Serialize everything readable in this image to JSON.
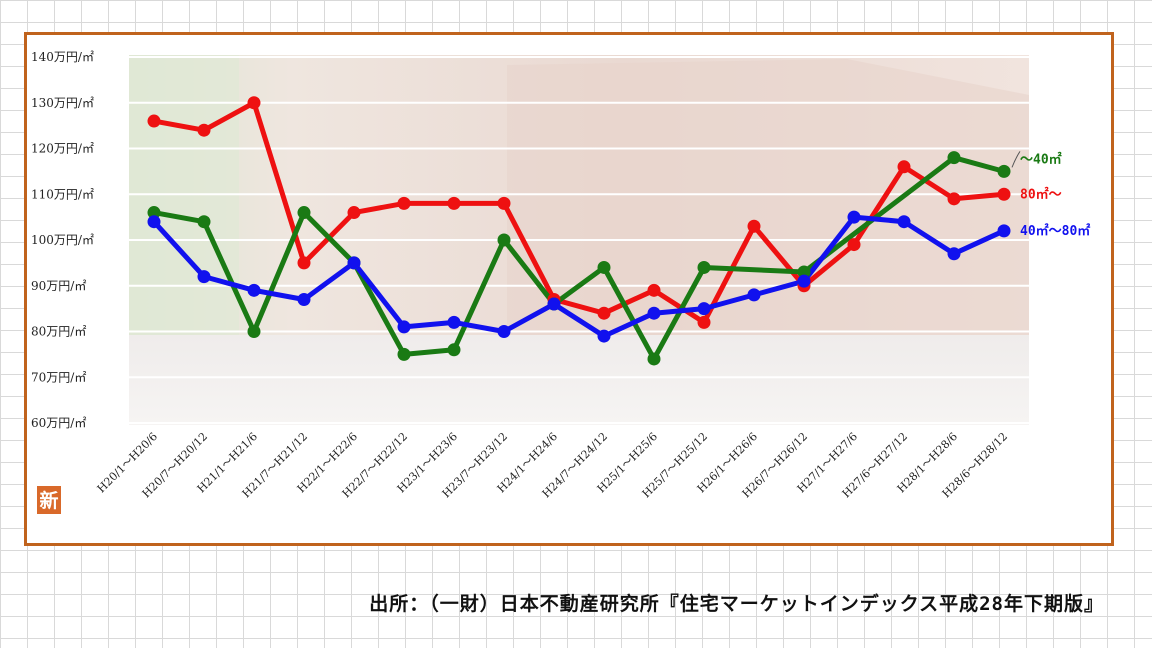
{
  "chart_data": {
    "type": "line",
    "y_unit_suffix": "万円/㎡",
    "ylim": [
      60,
      140
    ],
    "yticks": [
      60,
      70,
      80,
      90,
      100,
      110,
      120,
      130,
      140
    ],
    "grid": "horizontal",
    "categories": [
      "H20/1～H20/6",
      "H20/7～H20/12",
      "H21/1～H21/6",
      "H21/7～H21/12",
      "H22/1～H22/6",
      "H22/7～H22/12",
      "H23/1～H23/6",
      "H23/7～H23/12",
      "H24/1～H24/6",
      "H24/7～H24/12",
      "H25/1～H25/6",
      "H25/7～H25/12",
      "H26/1～H26/6",
      "H26/7～H26/12",
      "H27/1～H27/6",
      "H27/6～H27/12",
      "H28/1～H28/6",
      "H28/6～H28/12"
    ],
    "series": [
      {
        "name": "80㎡～",
        "color": "#ee1111",
        "values": [
          126,
          124,
          130,
          95,
          106,
          108,
          108,
          108,
          87,
          84,
          89,
          82,
          103,
          90,
          99,
          116,
          109,
          110
        ]
      },
      {
        "name": "～40㎡",
        "color": "#1a7a14",
        "values": [
          106,
          104,
          80,
          106,
          95,
          75,
          76,
          100,
          86,
          94,
          74,
          94,
          null,
          93,
          null,
          null,
          118,
          115
        ]
      },
      {
        "name": "40㎡～80㎡",
        "color": "#1111ee",
        "values": [
          104,
          92,
          89,
          87,
          95,
          81,
          82,
          80,
          86,
          79,
          84,
          85,
          88,
          91,
          105,
          104,
          97,
          102
        ]
      }
    ]
  },
  "corner_badge": "新",
  "source_note": "出所：（一財）日本不動産研究所『住宅マーケットインデックス平成28年下期版』"
}
